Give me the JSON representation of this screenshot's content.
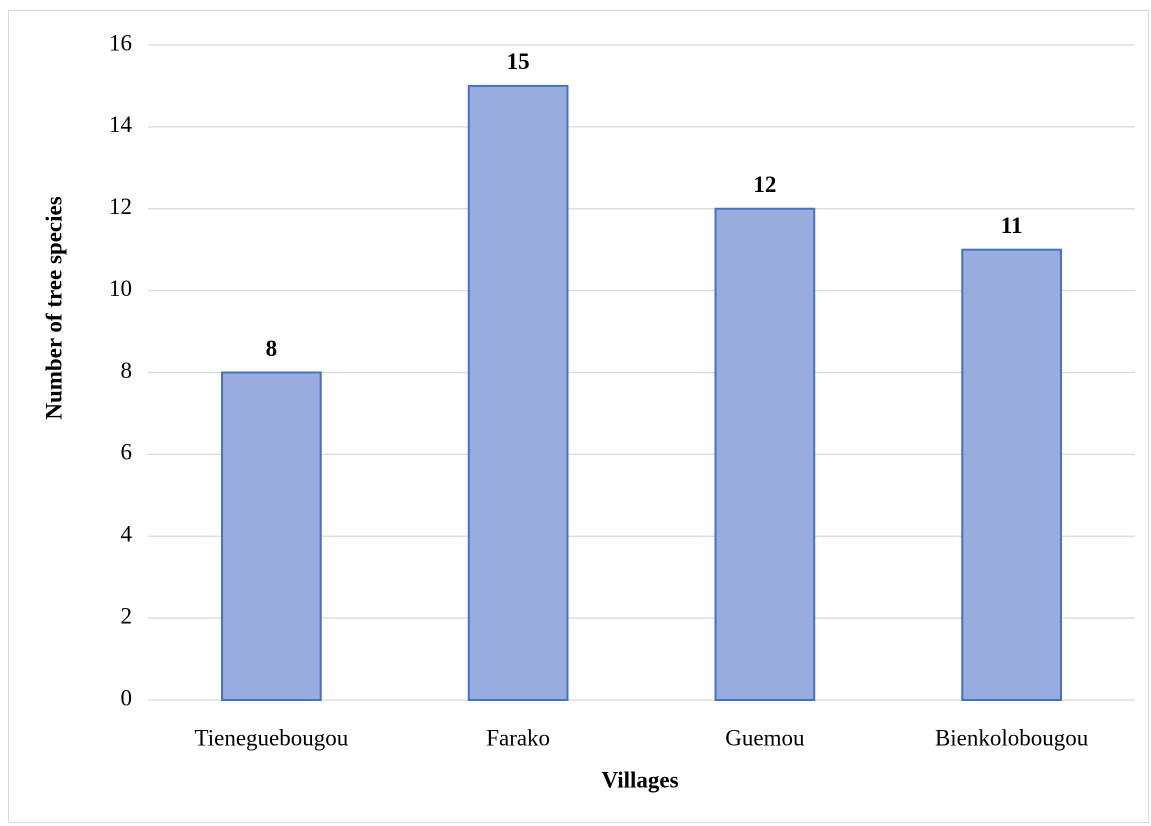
{
  "chart_data": {
    "type": "bar",
    "x_label": "Villages",
    "y_label": "Number of tree species",
    "categories": [
      "Tieneguebougou",
      "Farako",
      "Guemou",
      "Bienkolobougou"
    ],
    "values": [
      8,
      15,
      12,
      11
    ],
    "color": "#98acde",
    "edge_color": "#4472c4",
    "ylim": [
      0,
      16
    ],
    "yticks": [
      0,
      2,
      4,
      6,
      8,
      10,
      12,
      14,
      16
    ],
    "grid": true
  }
}
